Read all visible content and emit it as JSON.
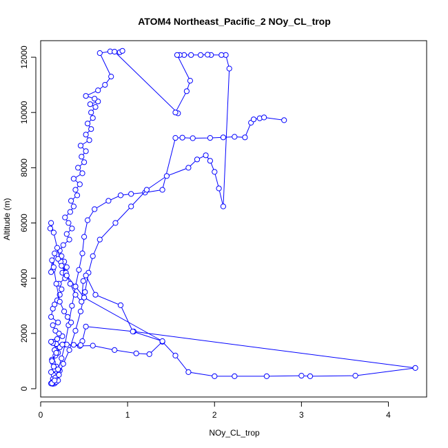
{
  "chart_data": {
    "type": "scatter",
    "title": "ATOM4 Northeast_Pacific_2 NOy_CL_trop",
    "xlabel": "NOy_CL_trop",
    "ylabel": "Altitude (m)",
    "xlim": [
      0,
      4.44
    ],
    "ylim": [
      -300,
      12600
    ],
    "x_ticks": [
      "0",
      "1",
      "2",
      "3",
      "4"
    ],
    "y_ticks": [
      "0",
      "2000",
      "4000",
      "6000",
      "8000",
      "10000",
      "12000"
    ],
    "grid": false,
    "legend": "none",
    "connect_points": true,
    "marker": "open-circle",
    "color": "#0000ff",
    "series": [
      {
        "x": [
          0.14,
          0.13,
          0.16,
          0.15,
          0.18,
          0.2,
          0.14,
          0.17,
          0.15,
          0.19,
          0.22,
          0.16,
          0.18,
          0.14,
          0.13,
          0.17,
          0.2,
          0.16,
          0.22,
          0.18,
          0.15,
          0.19,
          0.25,
          0.21,
          0.17,
          0.14,
          0.2,
          0.12,
          0.14,
          0.16,
          0.19,
          0.22,
          0.24,
          0.21,
          0.28,
          0.25,
          0.3,
          0.27,
          0.24,
          0.22,
          0.26,
          0.33,
          0.3,
          0.36,
          0.32,
          0.28,
          0.34,
          0.38,
          0.35,
          0.42,
          0.4,
          0.45,
          0.38,
          0.48,
          0.43,
          0.5,
          0.47,
          0.52,
          0.46,
          0.56,
          0.52,
          0.58,
          0.54,
          0.6,
          0.58,
          0.63,
          0.57,
          0.66,
          0.62,
          0.52,
          0.66,
          0.74,
          0.81,
          0.68,
          0.8,
          0.91,
          0.94,
          0.85,
          1.58
        ],
        "y": [
          180,
          200,
          190,
          220,
          250,
          300,
          350,
          420,
          500,
          600,
          650,
          700,
          800,
          950,
          1050,
          1200,
          1300,
          1400,
          1500,
          1600,
          1700,
          1800,
          1900,
          2000,
          2100,
          2300,
          2400,
          2600,
          2900,
          3050,
          3200,
          3400,
          3600,
          3800,
          4000,
          4200,
          4400,
          4600,
          4800,
          5000,
          5200,
          5400,
          5600,
          5800,
          6000,
          6200,
          6400,
          6600,
          6800,
          7000,
          7200,
          7400,
          7600,
          7800,
          8000,
          8200,
          8400,
          8600,
          8800,
          9000,
          9200,
          9400,
          9600,
          9800,
          10000,
          10200,
          10300,
          10400,
          10500,
          10600,
          10800,
          11000,
          11300,
          12150,
          12210,
          12180,
          12230,
          12200,
          9970
        ]
      },
      {
        "x": [
          0.12,
          0.14,
          0.17,
          0.2,
          0.24,
          0.28,
          0.32,
          0.36,
          0.4,
          0.44,
          0.48,
          0.5,
          0.54,
          0.62,
          0.78,
          0.92,
          1.04,
          1.2,
          1.4,
          1.55,
          1.63,
          1.75,
          1.95,
          2.1,
          2.23,
          2.35,
          2.42,
          2.45,
          2.52,
          2.57,
          2.8
        ],
        "y": [
          190,
          250,
          400,
          700,
          1100,
          1600,
          2300,
          3000,
          3700,
          4300,
          4900,
          5500,
          6100,
          6500,
          6800,
          7000,
          7050,
          7100,
          7200,
          9080,
          9090,
          9070,
          9080,
          9100,
          9120,
          9100,
          9630,
          9750,
          9790,
          9820,
          9720
        ]
      },
      {
        "x": [
          0.13,
          0.16,
          0.21,
          0.26,
          0.33,
          0.4,
          0.46,
          0.51,
          0.55,
          0.6,
          0.68,
          0.86,
          1.04,
          1.22,
          1.45,
          1.7,
          1.8,
          1.9,
          1.95,
          2.0,
          2.05,
          2.1,
          2.17,
          2.13,
          2.08,
          1.96,
          1.92,
          1.84,
          1.73,
          1.65,
          1.6,
          1.57,
          1.72,
          1.68,
          1.55
        ],
        "y": [
          200,
          300,
          500,
          900,
          1400,
          2100,
          2800,
          3500,
          4200,
          4800,
          5400,
          6000,
          6600,
          7200,
          7700,
          8000,
          8300,
          8450,
          8250,
          7850,
          7250,
          6600,
          11590,
          12080,
          12080,
          12080,
          12090,
          12080,
          12080,
          12080,
          12080,
          12080,
          11150,
          10770,
          10000
        ]
      },
      {
        "x": [
          0.12,
          0.15,
          0.13,
          0.18,
          0.22,
          0.3,
          0.45,
          0.6,
          0.85,
          1.1,
          1.25,
          1.4,
          1.55,
          1.7,
          2.0,
          2.23,
          2.6,
          3.0,
          3.1,
          3.62,
          4.31,
          1.07,
          0.52,
          0.48,
          0.46,
          0.38,
          0.25,
          0.18,
          0.14,
          0.12
        ],
        "y": [
          600,
          800,
          1000,
          1300,
          1500,
          1600,
          1550,
          1560,
          1400,
          1280,
          1250,
          1700,
          1200,
          600,
          450,
          450,
          450,
          470,
          450,
          470,
          750,
          2070,
          2250,
          1720,
          1580,
          1590,
          1600,
          1620,
          1650,
          1700
        ]
      },
      {
        "x": [
          0.11,
          0.12,
          0.15,
          0.19,
          0.23,
          0.29,
          0.34,
          0.4,
          0.47,
          0.49,
          0.52,
          0.63,
          0.92,
          1.06,
          1.4,
          0.5,
          0.4,
          0.3,
          0.24,
          0.2,
          0.16,
          0.14,
          0.12,
          0.13,
          0.15,
          0.18,
          0.22,
          0.27,
          0.31,
          0.35
        ],
        "y": [
          5800,
          6000,
          5650,
          5100,
          4600,
          4200,
          3800,
          3400,
          3150,
          3900,
          4100,
          3400,
          3020,
          2070,
          1720,
          3300,
          3700,
          4100,
          4450,
          4700,
          4900,
          4300,
          4220,
          4650,
          4400,
          3800,
          3150,
          2800,
          2600,
          2400
        ]
      }
    ]
  }
}
